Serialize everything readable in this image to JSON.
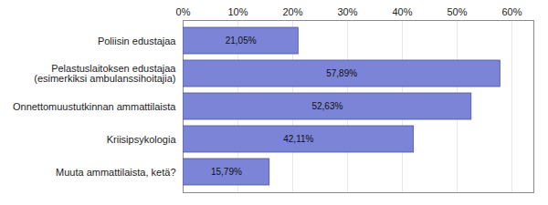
{
  "chart_data": {
    "type": "bar",
    "orientation": "horizontal",
    "categories": [
      "Poliisin edustajaa",
      "Pelastuslaitoksen edustajaa\n(esimerkiksi ambulanssihoitajia)",
      "Onnettomuustutkinnan ammattilaista",
      "Kriisipsykologia",
      "Muuta ammattilaista, ketä?"
    ],
    "values": [
      21.05,
      57.89,
      52.63,
      42.11,
      15.79
    ],
    "value_labels": [
      "21,05%",
      "57,89%",
      "52,63%",
      "42,11%",
      "15,79%"
    ],
    "color": "#7b84d6",
    "xlim": [
      0,
      64
    ],
    "xticks": [
      {
        "value": 0,
        "label": "0%"
      },
      {
        "value": 10,
        "label": "10%"
      },
      {
        "value": 20,
        "label": "20%"
      },
      {
        "value": 30,
        "label": "30%"
      },
      {
        "value": 40,
        "label": "40%"
      },
      {
        "value": 50,
        "label": "50%"
      },
      {
        "value": 60,
        "label": "60%"
      }
    ],
    "grid": true,
    "data_labels": true
  }
}
